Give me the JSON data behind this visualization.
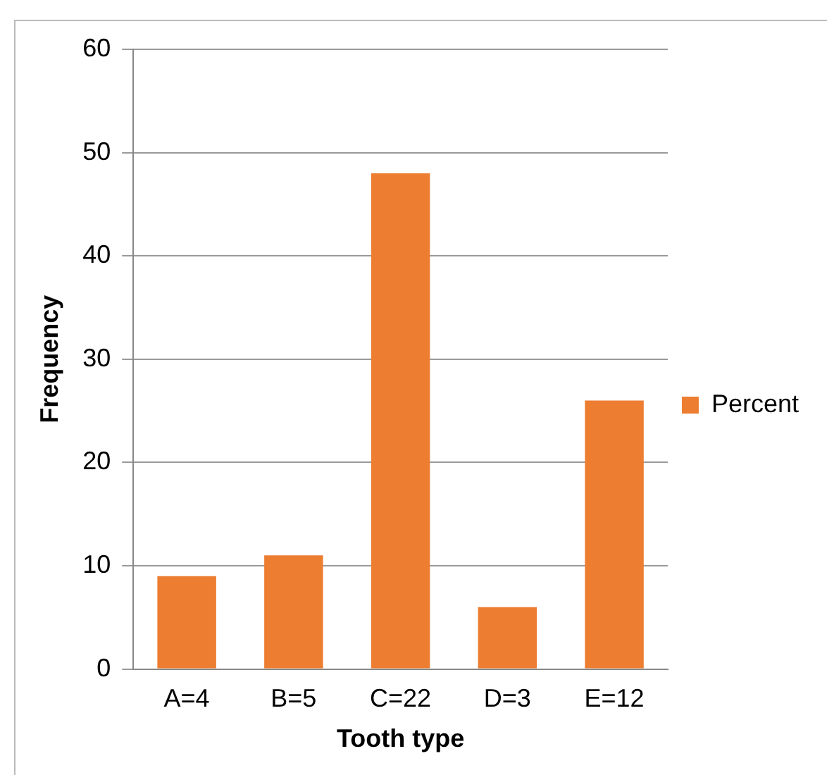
{
  "chart_data": {
    "type": "bar",
    "xlabel": "Tooth type",
    "ylabel": "Frequency",
    "categories": [
      "A=4",
      "B=5",
      "C=22",
      "D=3",
      "E=12"
    ],
    "series": [
      {
        "name": "Percent",
        "color": "#ed7d31",
        "values": [
          9,
          11,
          48,
          6,
          26
        ]
      }
    ],
    "ylim": [
      0,
      60
    ],
    "yticks": [
      0,
      10,
      20,
      30,
      40,
      50,
      60
    ],
    "grid": "y",
    "legend": "right"
  }
}
